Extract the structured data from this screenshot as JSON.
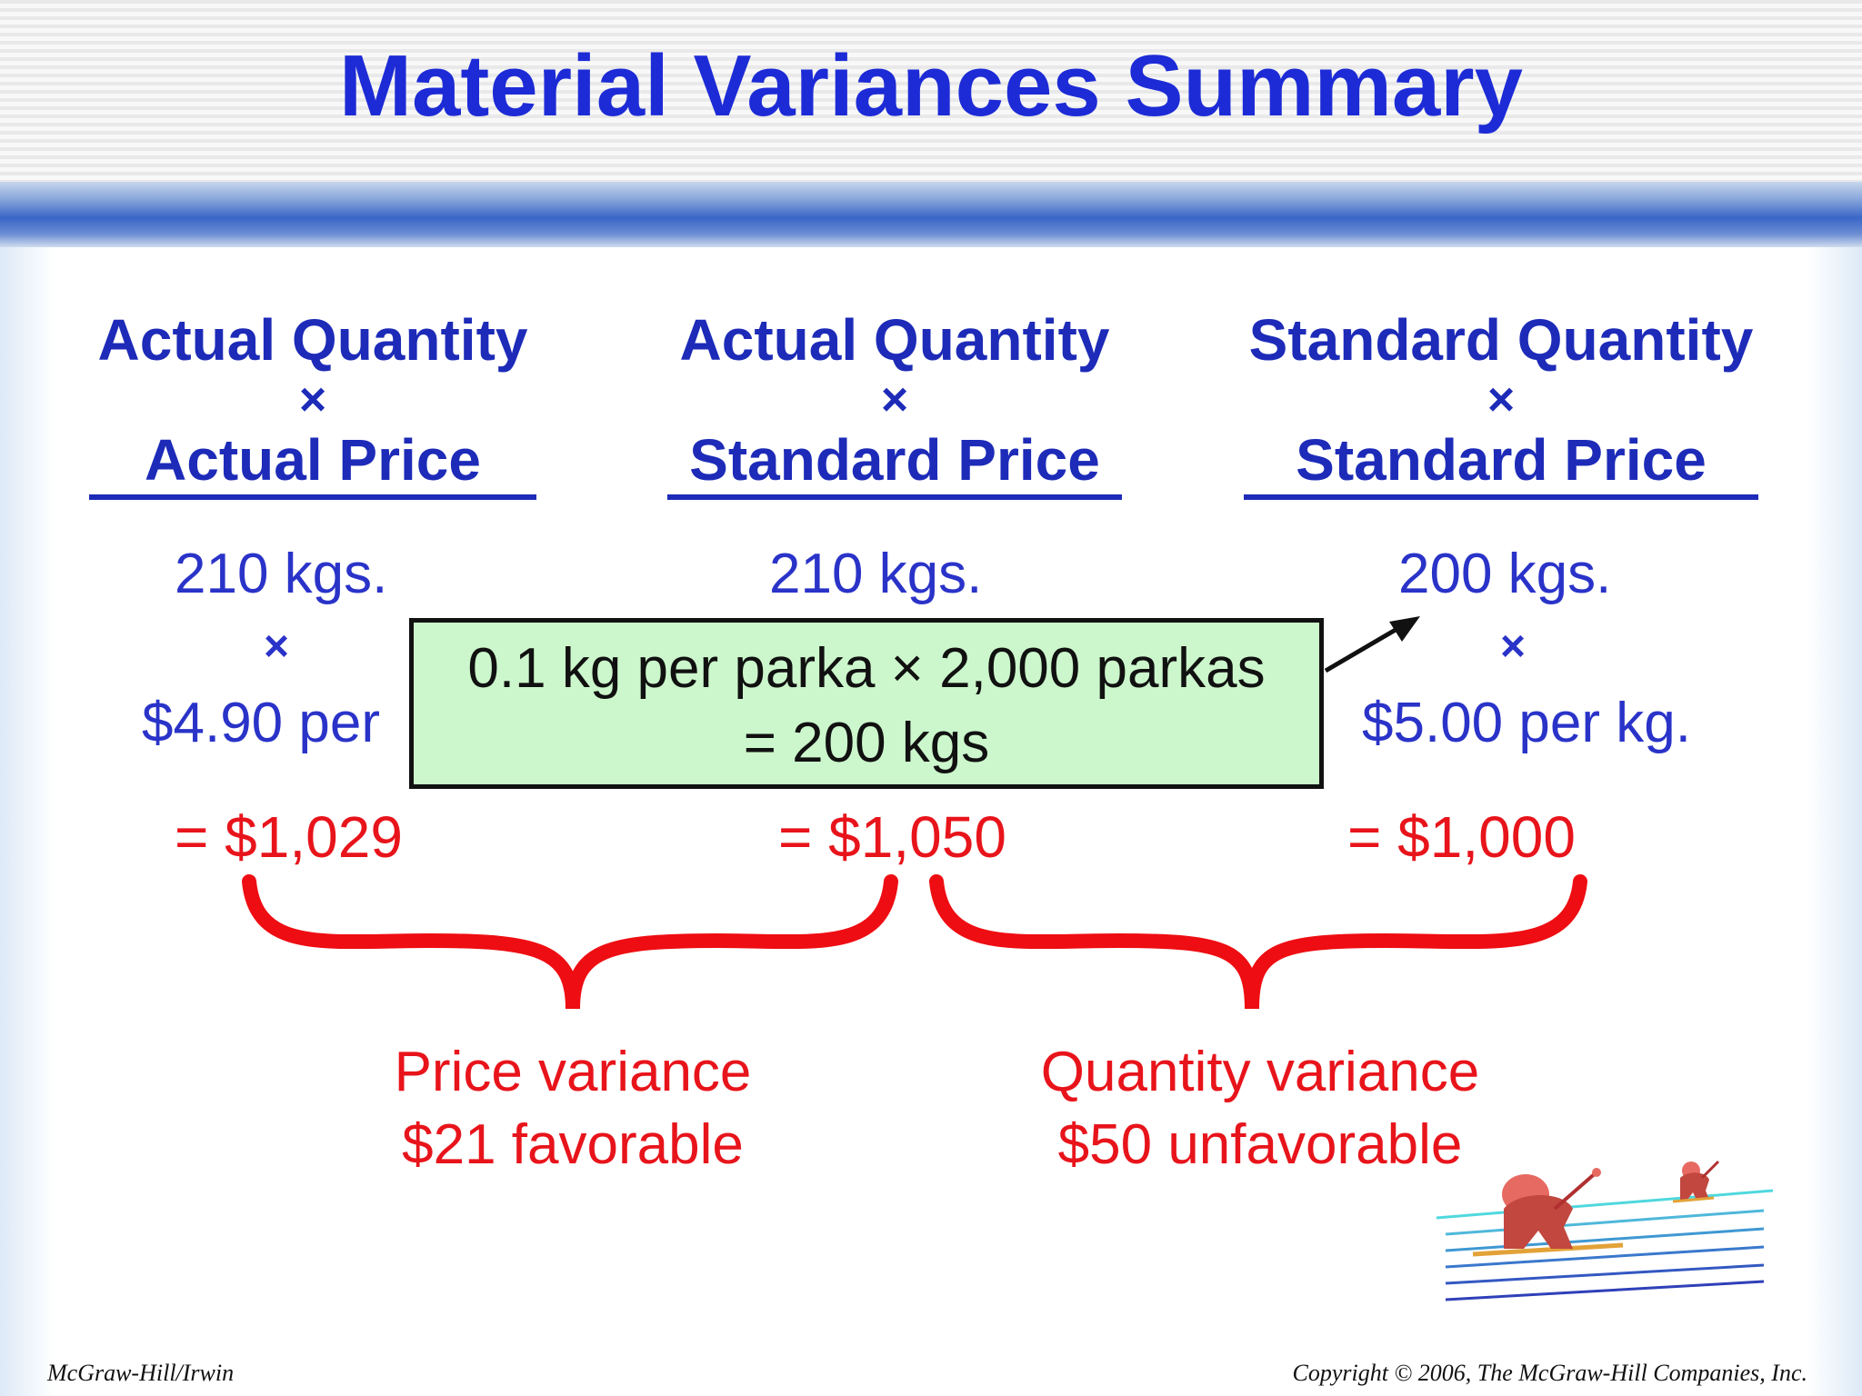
{
  "title": "Material Variances Summary",
  "columns": [
    {
      "line1": "Actual Quantity",
      "times": "×",
      "line2": "Actual Price",
      "qty": "210 kgs.",
      "mult": "×",
      "price": "$4.90 per",
      "total": "= $1,029"
    },
    {
      "line1": "Actual Quantity",
      "times": "×",
      "line2": "Standard Price",
      "qty": "210 kgs.",
      "mult": "",
      "price": "",
      "total": "= $1,050"
    },
    {
      "line1": "Standard Quantity",
      "times": "×",
      "line2": "Standard Price",
      "qty": "200 kgs.",
      "mult": "×",
      "price": "$5.00 per kg.",
      "total": "= $1,000"
    }
  ],
  "callout": {
    "line1": "0.1 kg per parka × 2,000 parkas",
    "line2": "= 200 kgs"
  },
  "variances": [
    {
      "line1": "Price variance",
      "line2": "$21 favorable"
    },
    {
      "line1": "Quantity variance",
      "line2": "$50 unfavorable"
    }
  ],
  "footer": {
    "left": "McGraw-Hill/Irwin",
    "right": "Copyright © 2006, The McGraw-Hill Companies, Inc."
  },
  "colors": {
    "heading": "#1d2bb8",
    "values": "#2a33c8",
    "totals": "#e8141b",
    "callout_bg": "#ccf7cc"
  }
}
